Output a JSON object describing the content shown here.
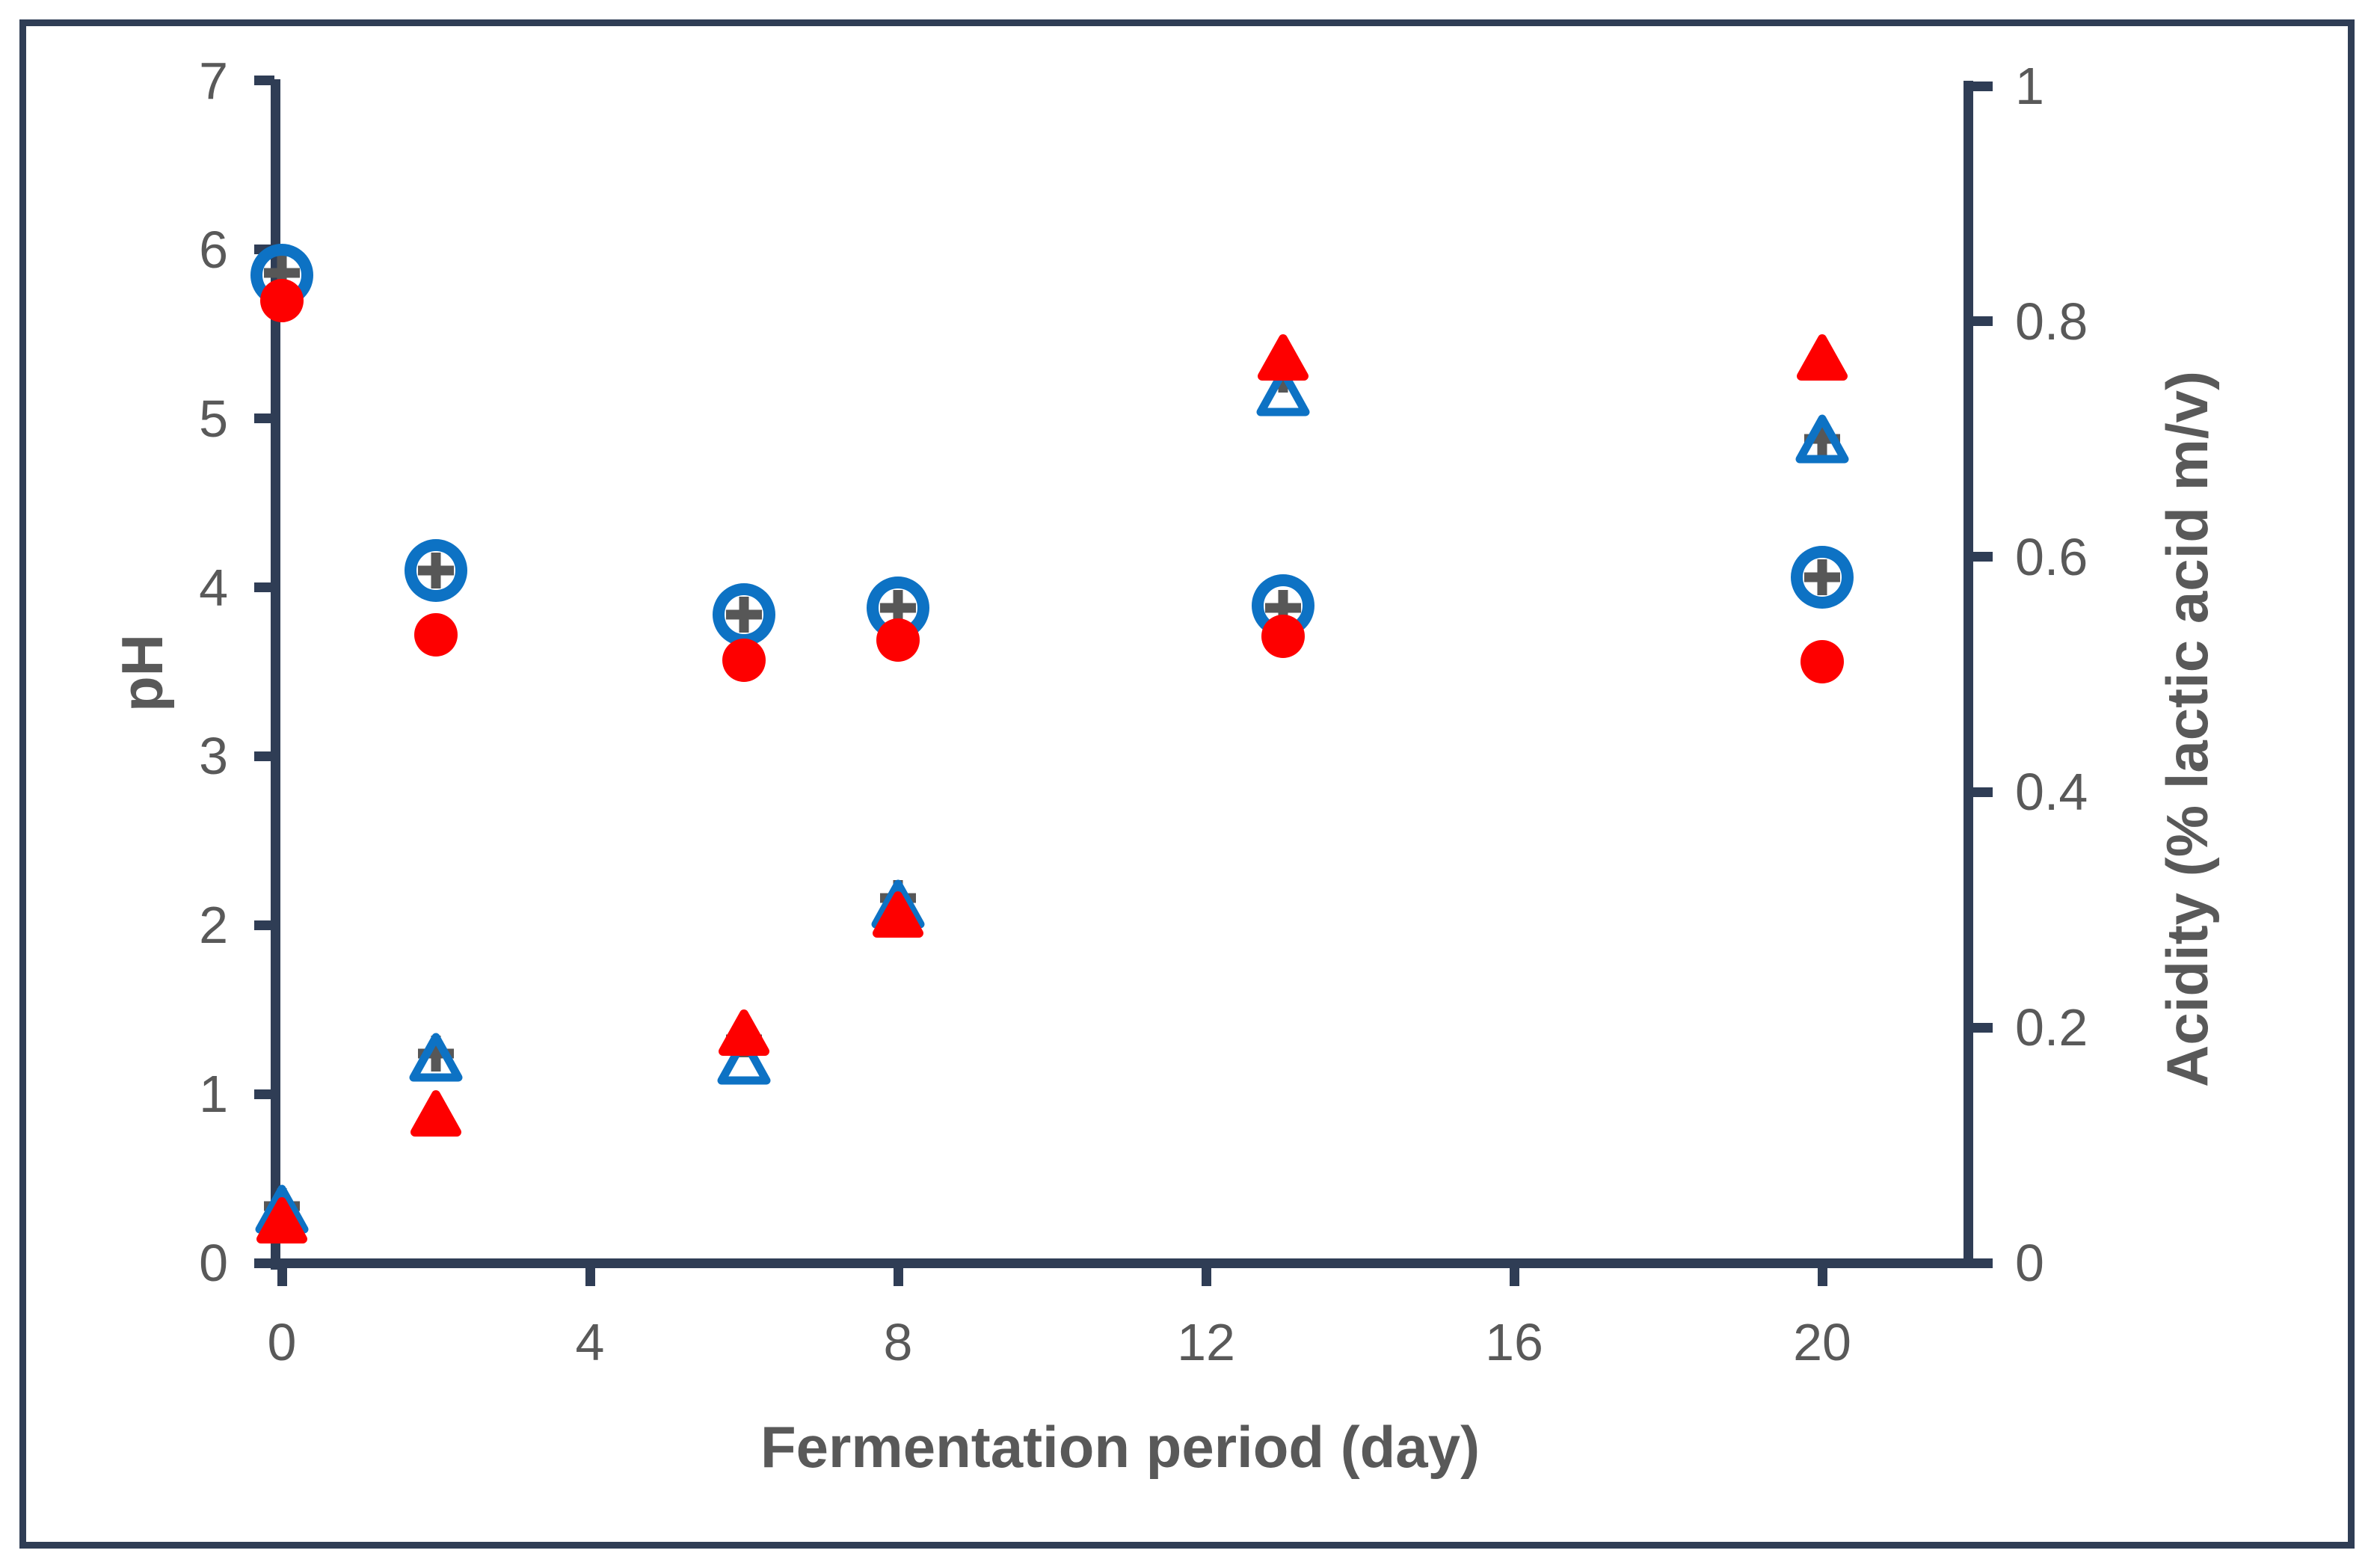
{
  "chart_data": {
    "type": "scatter",
    "title": "",
    "xlabel": "Fermentation period (day)",
    "ylabel_left": "pH",
    "ylabel_right": "Acidity (% lactic acid m/v)",
    "x": [
      0,
      2,
      6,
      8,
      13,
      20
    ],
    "x_axis": {
      "min": 0,
      "max": 22,
      "ticks": [
        0,
        4,
        8,
        12,
        16,
        20
      ]
    },
    "y_axis_left": {
      "min": 0,
      "max": 7,
      "ticks": [
        0,
        1,
        2,
        3,
        4,
        5,
        6,
        7
      ]
    },
    "y_axis_right": {
      "min": 0,
      "max": 1,
      "ticks": [
        0,
        0.2,
        0.4,
        0.6,
        0.8,
        1
      ]
    },
    "grid": false,
    "legend": "none",
    "series": [
      {
        "name": "pH (gray plus marker)",
        "axis": "left",
        "marker": "plus",
        "color": "#575757",
        "values": [
          5.86,
          4.1,
          3.84,
          3.88,
          3.88,
          4.06
        ]
      },
      {
        "name": "Acidity (gray plus marker)",
        "axis": "right",
        "marker": "plus",
        "color": "#575757",
        "values": [
          0.048,
          0.178,
          0.19,
          0.31,
          0.755,
          0.7
        ]
      },
      {
        "name": "pH (blue open circle)",
        "axis": "left",
        "marker": "open-circle",
        "color": "#0d72c4",
        "values": [
          5.85,
          4.1,
          3.84,
          3.88,
          3.89,
          4.06
        ]
      },
      {
        "name": "Acidity (blue open triangle)",
        "axis": "right",
        "marker": "open-triangle",
        "color": "#0d72c4",
        "values": [
          0.046,
          0.175,
          0.172,
          0.305,
          0.74,
          0.7
        ]
      },
      {
        "name": "pH (red filled circle)",
        "axis": "left",
        "marker": "filled-circle",
        "color": "#fe0000",
        "values": [
          5.7,
          3.72,
          3.57,
          3.69,
          3.71,
          3.56
        ]
      },
      {
        "name": "Acidity (red filled triangle)",
        "axis": "right",
        "marker": "filled-triangle",
        "color": "#fe0000",
        "values": [
          0.037,
          0.128,
          0.196,
          0.297,
          0.77,
          0.77
        ]
      }
    ]
  },
  "colors": {
    "axis": "#2f3d55",
    "text": "#595959",
    "blue": "#0d72c4",
    "red": "#fe0000",
    "plus_gray": "#575757",
    "background": "#ffffff"
  }
}
